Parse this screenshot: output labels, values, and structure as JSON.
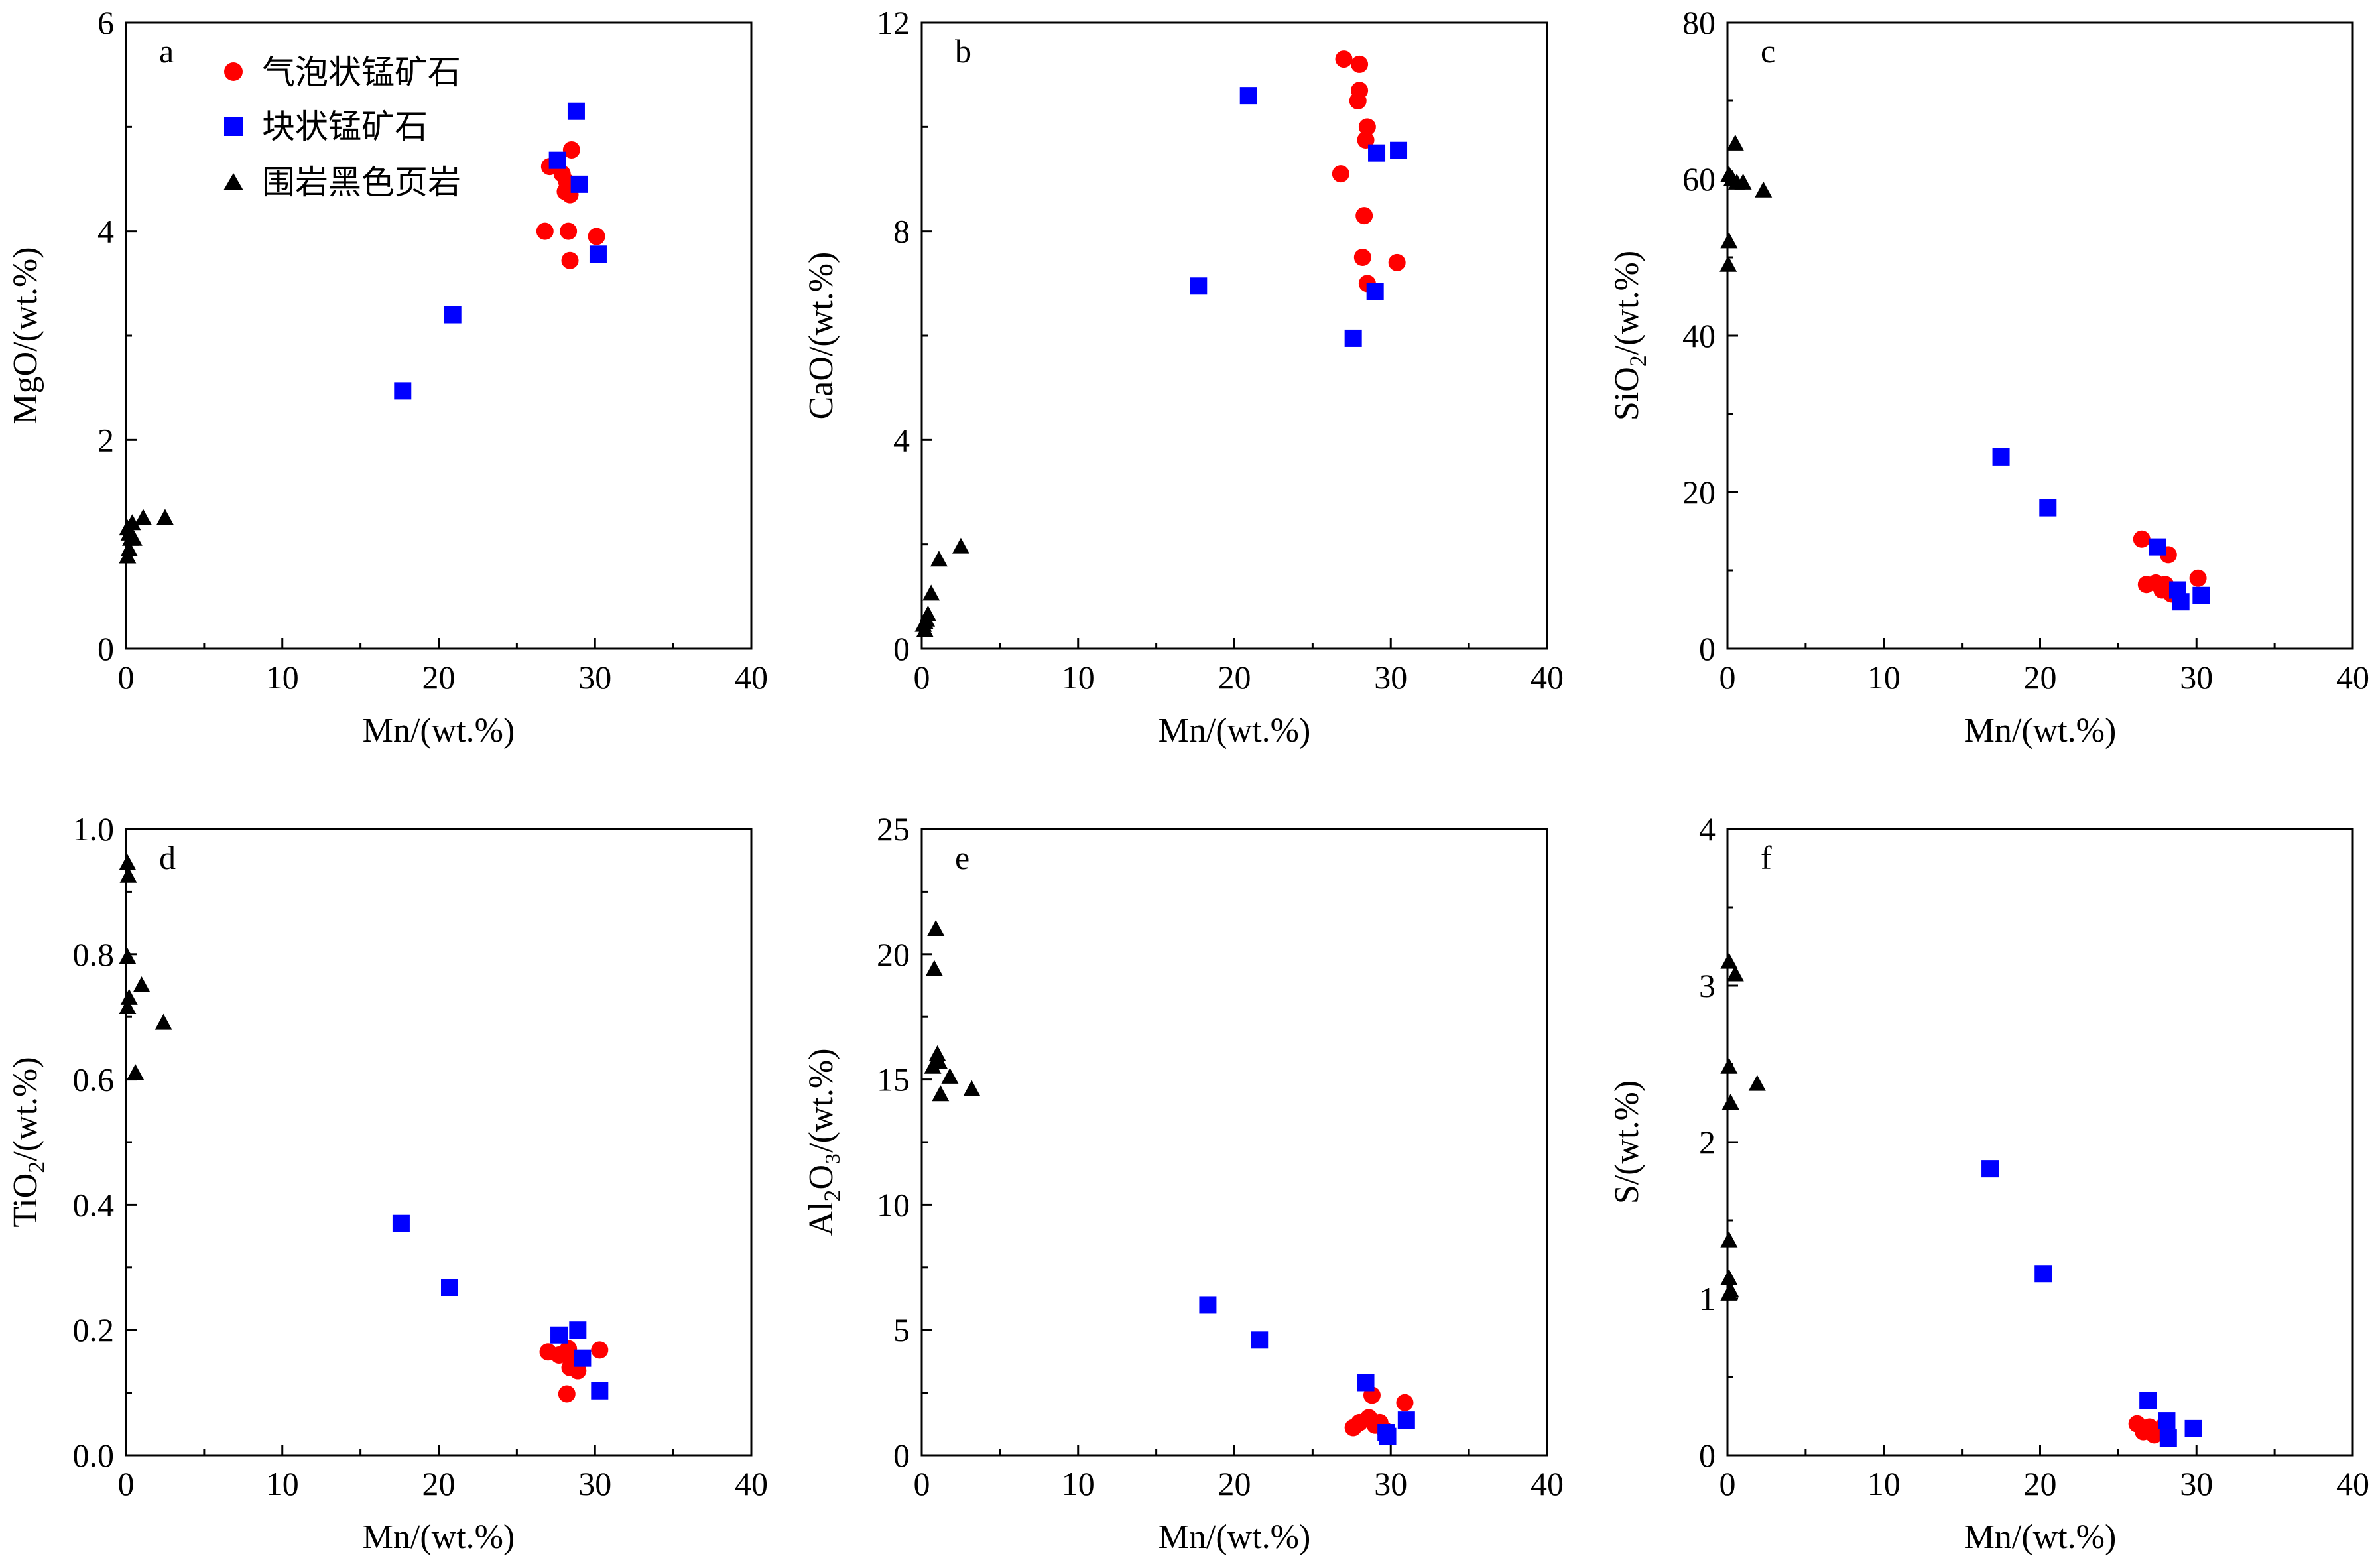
{
  "legend": {
    "items": [
      {
        "label": "气泡状锰矿石",
        "marker": "circle",
        "color": "#ff0000"
      },
      {
        "label": "块状锰矿石",
        "marker": "square",
        "color": "#0000ff"
      },
      {
        "label": "围岩黑色页岩",
        "marker": "triangle",
        "color": "#000000"
      }
    ]
  },
  "chart_data": [
    {
      "type": "scatter",
      "panel": "a",
      "xlabel": "Mn/(wt.%)",
      "ylabel_base": "MgO",
      "ylabel_sub": "",
      "ylabel_rest": "/(wt.%)",
      "xlim": [
        0,
        40
      ],
      "ylim": [
        0,
        6
      ],
      "xticks": [
        "0",
        "10",
        "20",
        "30",
        "40"
      ],
      "yticks": [
        "0",
        "2",
        "4",
        "6"
      ],
      "series": [
        {
          "name": "气泡状锰矿石",
          "points": [
            [
              27.1,
              4.62
            ],
            [
              27.9,
              4.55
            ],
            [
              28.2,
              4.47
            ],
            [
              28.1,
              4.38
            ],
            [
              28.4,
              4.35
            ],
            [
              28.5,
              4.78
            ],
            [
              26.8,
              4.0
            ],
            [
              28.3,
              4.0
            ],
            [
              30.1,
              3.95
            ],
            [
              28.4,
              3.72
            ]
          ]
        },
        {
          "name": "块状锰矿石",
          "points": [
            [
              28.8,
              5.15
            ],
            [
              27.6,
              4.68
            ],
            [
              29.0,
              4.45
            ],
            [
              30.2,
              3.78
            ],
            [
              20.9,
              3.2
            ],
            [
              17.7,
              2.47
            ]
          ]
        },
        {
          "name": "围岩黑色页岩",
          "points": [
            [
              0.1,
              1.15
            ],
            [
              0.2,
              1.1
            ],
            [
              0.3,
              1.05
            ],
            [
              0.5,
              1.05
            ],
            [
              0.2,
              0.95
            ],
            [
              0.1,
              0.88
            ],
            [
              1.1,
              1.25
            ],
            [
              2.5,
              1.25
            ],
            [
              0.4,
              1.2
            ]
          ]
        }
      ]
    },
    {
      "type": "scatter",
      "panel": "b",
      "xlabel": "Mn/(wt.%)",
      "ylabel_base": "CaO",
      "ylabel_sub": "",
      "ylabel_rest": "/(wt.%)",
      "xlim": [
        0,
        40
      ],
      "ylim": [
        0,
        12
      ],
      "xticks": [
        "0",
        "10",
        "20",
        "30",
        "40"
      ],
      "yticks": [
        "0",
        "4",
        "8",
        "12"
      ],
      "series": [
        {
          "name": "气泡状锰矿石",
          "points": [
            [
              27.0,
              11.3
            ],
            [
              28.0,
              11.2
            ],
            [
              28.0,
              10.7
            ],
            [
              27.9,
              10.5
            ],
            [
              28.5,
              10.0
            ],
            [
              28.4,
              9.75
            ],
            [
              26.8,
              9.1
            ],
            [
              28.3,
              8.3
            ],
            [
              28.2,
              7.5
            ],
            [
              30.4,
              7.4
            ],
            [
              28.5,
              7.0
            ]
          ]
        },
        {
          "name": "块状锰矿石",
          "points": [
            [
              20.9,
              10.6
            ],
            [
              29.1,
              9.5
            ],
            [
              30.5,
              9.55
            ],
            [
              17.7,
              6.95
            ],
            [
              29.0,
              6.85
            ],
            [
              27.6,
              5.95
            ]
          ]
        },
        {
          "name": "围岩黑色页岩",
          "points": [
            [
              0.1,
              0.45
            ],
            [
              0.2,
              0.5
            ],
            [
              0.3,
              0.55
            ],
            [
              0.4,
              0.65
            ],
            [
              0.2,
              0.35
            ],
            [
              0.6,
              1.05
            ],
            [
              1.1,
              1.7
            ],
            [
              2.5,
              1.95
            ]
          ]
        }
      ]
    },
    {
      "type": "scatter",
      "panel": "c",
      "xlabel": "Mn/(wt.%)",
      "ylabel_base": "SiO",
      "ylabel_sub": "2",
      "ylabel_rest": "/(wt.%)",
      "xlim": [
        0,
        40
      ],
      "ylim": [
        0,
        80
      ],
      "xticks": [
        "0",
        "10",
        "20",
        "30",
        "40"
      ],
      "yticks": [
        "0",
        "20",
        "40",
        "60",
        "80"
      ],
      "series": [
        {
          "name": "气泡状锰矿石",
          "points": [
            [
              26.5,
              14.0
            ],
            [
              28.2,
              12.0
            ],
            [
              26.8,
              8.2
            ],
            [
              27.4,
              8.4
            ],
            [
              27.8,
              7.5
            ],
            [
              28.0,
              8.2
            ],
            [
              28.4,
              7.0
            ],
            [
              30.1,
              9.0
            ]
          ]
        },
        {
          "name": "块状锰矿石",
          "points": [
            [
              17.5,
              24.5
            ],
            [
              20.5,
              18.0
            ],
            [
              27.5,
              13.0
            ],
            [
              28.8,
              7.5
            ],
            [
              29.0,
              6.0
            ],
            [
              30.3,
              6.8
            ]
          ]
        },
        {
          "name": "围岩黑色页岩",
          "points": [
            [
              0.1,
              60.5
            ],
            [
              0.3,
              60.0
            ],
            [
              0.6,
              59.5
            ],
            [
              1.0,
              59.5
            ],
            [
              0.5,
              64.5
            ],
            [
              2.3,
              58.5
            ],
            [
              0.1,
              52.0
            ],
            [
              0.05,
              49.0
            ]
          ]
        }
      ]
    },
    {
      "type": "scatter",
      "panel": "d",
      "xlabel": "Mn/(wt.%)",
      "ylabel_base": "TiO",
      "ylabel_sub": "2",
      "ylabel_rest": "/(wt.%)",
      "xlim": [
        0,
        40
      ],
      "ylim": [
        0,
        1.0
      ],
      "xticks": [
        "0",
        "10",
        "20",
        "30",
        "40"
      ],
      "yticks": [
        "0.0",
        "0.2",
        "0.4",
        "0.6",
        "0.8",
        "1.0"
      ],
      "series": [
        {
          "name": "气泡状锰矿石",
          "points": [
            [
              27.0,
              0.165
            ],
            [
              27.7,
              0.16
            ],
            [
              28.3,
              0.17
            ],
            [
              28.5,
              0.15
            ],
            [
              28.4,
              0.14
            ],
            [
              28.9,
              0.135
            ],
            [
              30.3,
              0.168
            ],
            [
              28.2,
              0.098
            ]
          ]
        },
        {
          "name": "块状锰矿石",
          "points": [
            [
              17.6,
              0.37
            ],
            [
              20.7,
              0.268
            ],
            [
              27.7,
              0.192
            ],
            [
              28.9,
              0.2
            ],
            [
              29.2,
              0.155
            ],
            [
              30.3,
              0.103
            ]
          ]
        },
        {
          "name": "围岩黑色页岩",
          "points": [
            [
              0.1,
              0.945
            ],
            [
              0.15,
              0.925
            ],
            [
              0.1,
              0.795
            ],
            [
              0.2,
              0.73
            ],
            [
              1.0,
              0.75
            ],
            [
              0.1,
              0.715
            ],
            [
              0.6,
              0.61
            ],
            [
              2.4,
              0.69
            ]
          ]
        }
      ]
    },
    {
      "type": "scatter",
      "panel": "e",
      "xlabel": "Mn/(wt.%)",
      "ylabel_base": "Al",
      "ylabel_sub": "2",
      "ylabel_rest": "O₃/(wt.%)",
      "xlim": [
        0,
        40
      ],
      "ylim": [
        0,
        25
      ],
      "xticks": [
        "0",
        "10",
        "20",
        "30",
        "40"
      ],
      "yticks": [
        "0",
        "5",
        "10",
        "15",
        "20",
        "25"
      ],
      "series": [
        {
          "name": "气泡状锰矿石",
          "points": [
            [
              27.6,
              1.1
            ],
            [
              28.0,
              1.3
            ],
            [
              28.6,
              1.5
            ],
            [
              29.0,
              1.2
            ],
            [
              29.3,
              1.3
            ],
            [
              28.8,
              2.4
            ],
            [
              30.9,
              2.1
            ],
            [
              29.6,
              1.0
            ]
          ]
        },
        {
          "name": "块状锰矿石",
          "points": [
            [
              18.3,
              6.0
            ],
            [
              21.6,
              4.6
            ],
            [
              28.4,
              2.9
            ],
            [
              29.7,
              0.9
            ],
            [
              29.8,
              0.75
            ],
            [
              31.0,
              1.4
            ]
          ]
        },
        {
          "name": "围岩黑色页岩",
          "points": [
            [
              0.9,
              21.0
            ],
            [
              0.8,
              19.4
            ],
            [
              1.0,
              16.0
            ],
            [
              1.1,
              15.7
            ],
            [
              0.7,
              15.5
            ],
            [
              1.8,
              15.1
            ],
            [
              3.2,
              14.6
            ],
            [
              1.2,
              14.4
            ]
          ]
        }
      ]
    },
    {
      "type": "scatter",
      "panel": "f",
      "xlabel": "Mn/(wt.%)",
      "ylabel_base": "S",
      "ylabel_sub": "",
      "ylabel_rest": "/(wt.%)",
      "xlim": [
        0,
        40
      ],
      "ylim": [
        0,
        4
      ],
      "xticks": [
        "0",
        "10",
        "20",
        "30",
        "40"
      ],
      "yticks": [
        "0",
        "1",
        "2",
        "3",
        "4"
      ],
      "series": [
        {
          "name": "气泡状锰矿石",
          "points": [
            [
              26.2,
              0.2
            ],
            [
              26.6,
              0.15
            ],
            [
              27.0,
              0.18
            ],
            [
              27.3,
              0.13
            ],
            [
              27.8,
              0.15
            ],
            [
              28.0,
              0.2
            ]
          ]
        },
        {
          "name": "块状锰矿石",
          "points": [
            [
              16.8,
              1.83
            ],
            [
              20.2,
              1.16
            ],
            [
              26.9,
              0.35
            ],
            [
              28.1,
              0.22
            ],
            [
              29.8,
              0.17
            ],
            [
              28.2,
              0.11
            ]
          ]
        },
        {
          "name": "围岩黑色页岩",
          "points": [
            [
              0.1,
              3.15
            ],
            [
              0.5,
              3.07
            ],
            [
              0.1,
              2.48
            ],
            [
              1.9,
              2.37
            ],
            [
              0.2,
              2.25
            ],
            [
              0.1,
              1.37
            ],
            [
              0.1,
              1.13
            ],
            [
              0.2,
              1.05
            ],
            [
              0.1,
              1.03
            ]
          ]
        }
      ]
    }
  ]
}
